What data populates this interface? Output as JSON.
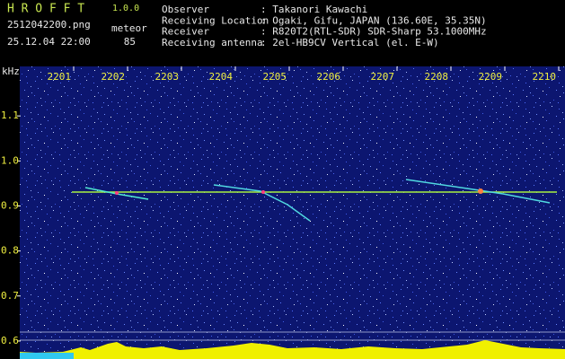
{
  "header": {
    "app": "H R O F F T",
    "version": "1.0.0",
    "file": "2512042200.png",
    "datetime": "25.12.04 22:00",
    "mode": "meteor",
    "count": 85,
    "fields": [
      {
        "label": "Observer",
        "value": ": Takanori Kawachi"
      },
      {
        "label": "Receiving Location",
        "value": ": Ogaki, Gifu, JAPAN (136.60E, 35.35N)"
      },
      {
        "label": "Receiver",
        "value": ": R820T2(RTL-SDR) SDR-Sharp 53.1000MHz"
      },
      {
        "label": "Receiving antenna",
        "value": ": 2el-HB9CV Vertical (el. E-W)"
      }
    ]
  },
  "chart_data": {
    "type": "spectrogram",
    "y_unit": "kHz",
    "xlim": [
      2200,
      2210.1167
    ],
    "xticks": [
      2201,
      2202,
      2203,
      2204,
      2205,
      2206,
      2207,
      2208,
      2209,
      2210
    ],
    "ylim": [
      0.56,
      1.21
    ],
    "yticks": [
      0.6,
      0.7,
      0.8,
      0.9,
      {
        "value": 1.0,
        "label": "1.0"
      },
      1.1
    ]
  }
}
